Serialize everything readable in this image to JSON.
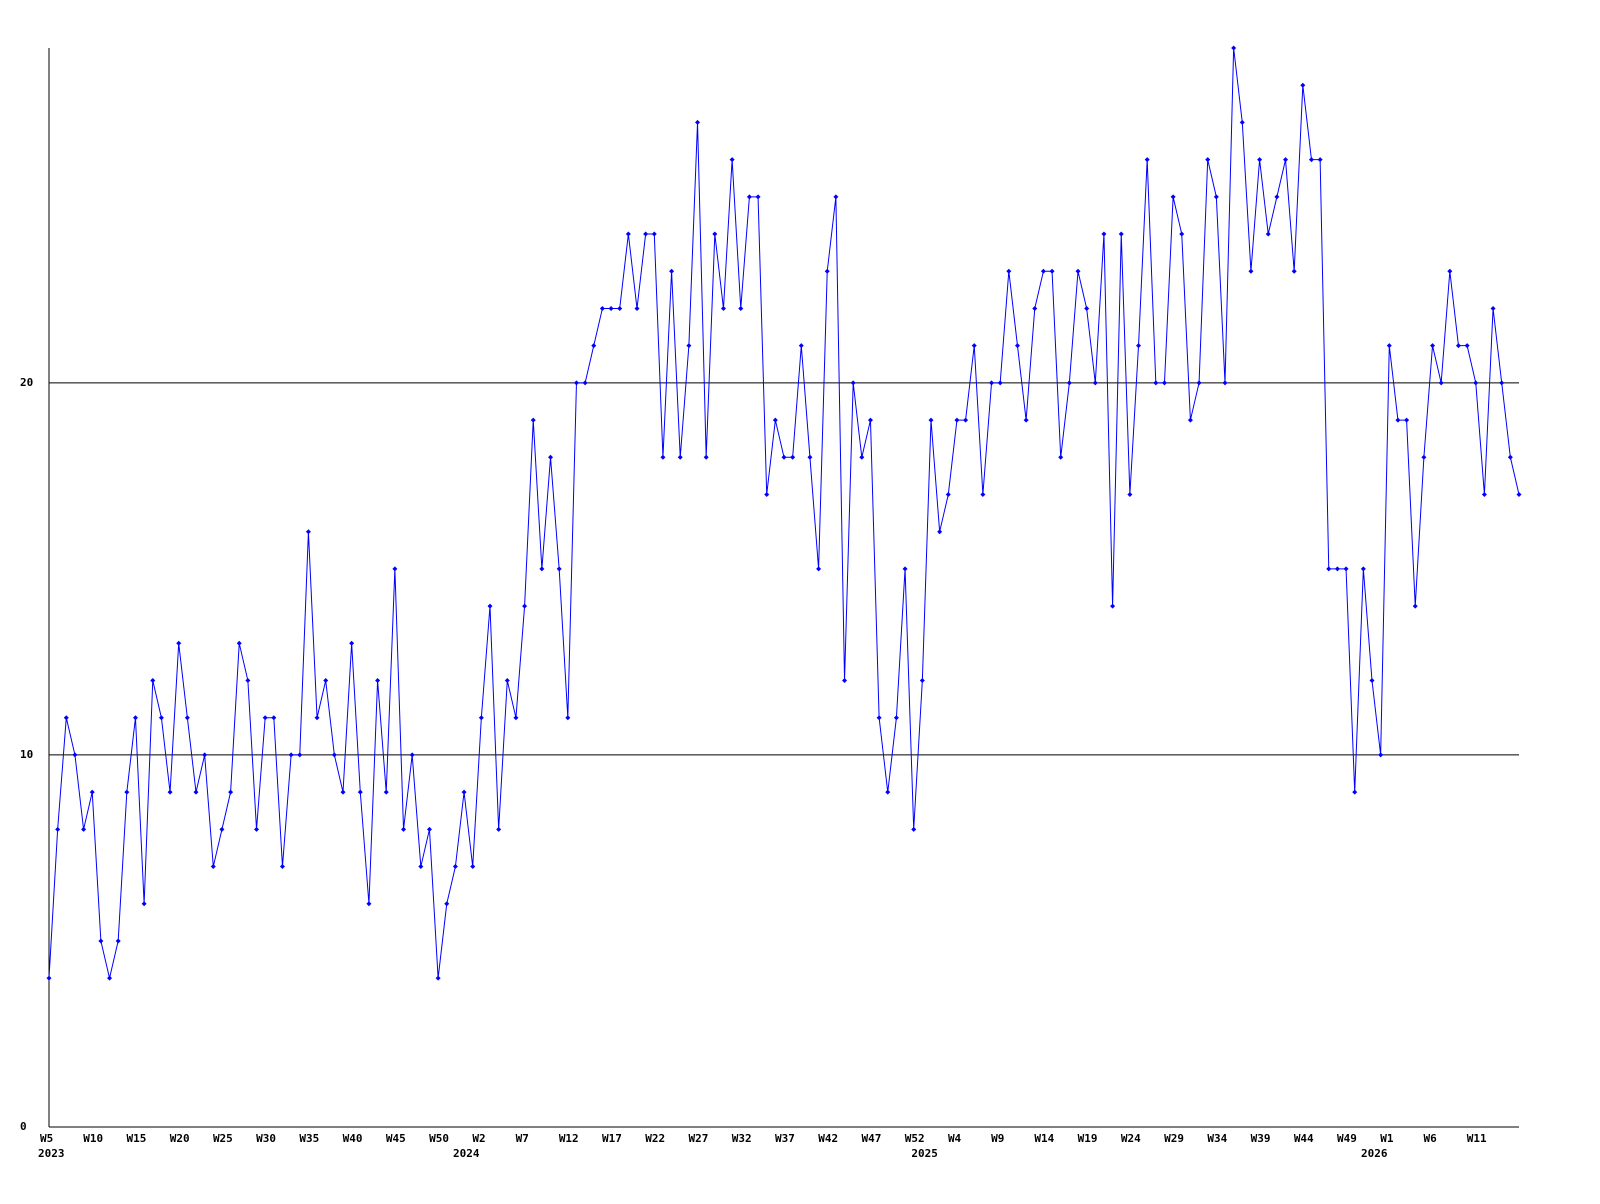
{
  "chart_data": {
    "type": "line",
    "categories": [
      "W5",
      null,
      null,
      null,
      null,
      "W10",
      null,
      null,
      null,
      null,
      "W15",
      null,
      null,
      null,
      null,
      "W20",
      null,
      null,
      null,
      null,
      "W25",
      null,
      null,
      null,
      null,
      "W30",
      null,
      null,
      null,
      null,
      "W35",
      null,
      null,
      null,
      null,
      "W40",
      null,
      null,
      null,
      null,
      "W45",
      null,
      null,
      null,
      null,
      "W50",
      null,
      null,
      null,
      null,
      "W2",
      null,
      null,
      null,
      null,
      "W7",
      null,
      null,
      null,
      null,
      "W12",
      null,
      null,
      null,
      null,
      "W17",
      null,
      null,
      null,
      null,
      "W22",
      null,
      null,
      null,
      null,
      "W27",
      null,
      null,
      null,
      null,
      "W32",
      null,
      null,
      null,
      null,
      "W37",
      null,
      null,
      null,
      null,
      "W42",
      null,
      null,
      null,
      null,
      "W47",
      null,
      null,
      null,
      null,
      "W52",
      null,
      null,
      null,
      null,
      "W4",
      null,
      null,
      null,
      null,
      "W9",
      null,
      null,
      null,
      null,
      "W14",
      null,
      null,
      null,
      null,
      "W19",
      null,
      null,
      null,
      null,
      "W24",
      null,
      null,
      null,
      null,
      "W29",
      null,
      null,
      null,
      null,
      "W34",
      null,
      null,
      null,
      null,
      "W39",
      null,
      null,
      null,
      null,
      "W44",
      null,
      null,
      null,
      null,
      "W49",
      null,
      null,
      null,
      null,
      "W1",
      null,
      null,
      null,
      null,
      "W6",
      null,
      null,
      null,
      null,
      "W11",
      null,
      null,
      null,
      null,
      null
    ],
    "year_labels": [
      "2023",
      null,
      null,
      null,
      null,
      null,
      null,
      null,
      null,
      null,
      null,
      null,
      null,
      null,
      null,
      null,
      null,
      null,
      null,
      null,
      null,
      null,
      null,
      null,
      null,
      null,
      null,
      null,
      null,
      null,
      null,
      null,
      null,
      null,
      null,
      null,
      null,
      null,
      null,
      null,
      null,
      null,
      null,
      null,
      null,
      null,
      null,
      null,
      "2024",
      null,
      null,
      null,
      null,
      null,
      null,
      null,
      null,
      null,
      null,
      null,
      null,
      null,
      null,
      null,
      null,
      null,
      null,
      null,
      null,
      null,
      null,
      null,
      null,
      null,
      null,
      null,
      null,
      null,
      null,
      null,
      null,
      null,
      null,
      null,
      null,
      null,
      null,
      null,
      null,
      null,
      null,
      null,
      null,
      null,
      null,
      null,
      null,
      null,
      null,
      null,
      null,
      "2025",
      null,
      null,
      null,
      null,
      null,
      null,
      null,
      null,
      null,
      null,
      null,
      null,
      null,
      null,
      null,
      null,
      null,
      null,
      null,
      null,
      null,
      null,
      null,
      null,
      null,
      null,
      null,
      null,
      null,
      null,
      null,
      null,
      null,
      null,
      null,
      null,
      null,
      null,
      null,
      null,
      null,
      null,
      null,
      null,
      null,
      null,
      null,
      null,
      null,
      null,
      null,
      "2026",
      null,
      null,
      null,
      null,
      null,
      null,
      null,
      null,
      null,
      null,
      null,
      null,
      null,
      null,
      null,
      null
    ],
    "series": [
      {
        "color": "#0000ff",
        "values": [
          4,
          8,
          11,
          10,
          8,
          9,
          5,
          4,
          5,
          9,
          11,
          6,
          12,
          11,
          9,
          13,
          11,
          9,
          10,
          7,
          8,
          9,
          13,
          12,
          8,
          11,
          11,
          7,
          10,
          10,
          16,
          11,
          12,
          10,
          9,
          13,
          9,
          6,
          12,
          9,
          15,
          8,
          10,
          7,
          8,
          4,
          6,
          7,
          9,
          7,
          11,
          14,
          8,
          12,
          11,
          14,
          19,
          15,
          18,
          15,
          11,
          20,
          20,
          21,
          22,
          22,
          22,
          24,
          22,
          24,
          24,
          18,
          23,
          18,
          21,
          27,
          18,
          24,
          22,
          26,
          22,
          25,
          25,
          17,
          19,
          18,
          18,
          21,
          18,
          15,
          23,
          25,
          12,
          20,
          18,
          19,
          11,
          9,
          11,
          15,
          8,
          12,
          19,
          16,
          17,
          19,
          19,
          21,
          17,
          20,
          20,
          23,
          21,
          19,
          22,
          23,
          23,
          18,
          20,
          23,
          22,
          20,
          24,
          14,
          24,
          17,
          21,
          26,
          20,
          20,
          25,
          24,
          19,
          20,
          26,
          25,
          20,
          29,
          27,
          23,
          26,
          24,
          25,
          26,
          23,
          28,
          26,
          26,
          15,
          15,
          15,
          9,
          15,
          12,
          10,
          21,
          19,
          19,
          14,
          18,
          21,
          20,
          23,
          21,
          21,
          20,
          17,
          22,
          20,
          18,
          17
        ]
      }
    ],
    "ylim": [
      0,
      29
    ],
    "yticks": [
      0,
      10,
      20
    ],
    "grid": true
  }
}
